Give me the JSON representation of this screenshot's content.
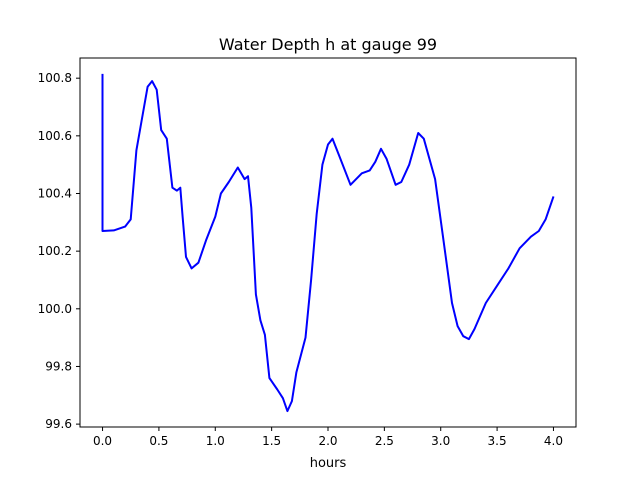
{
  "chart_data": {
    "type": "line",
    "title": "Water Depth h at gauge 99",
    "xlabel": "hours",
    "ylabel": "",
    "xlim": [
      -0.2,
      4.2
    ],
    "ylim": [
      99.59,
      100.87
    ],
    "xticks": [
      0.0,
      0.5,
      1.0,
      1.5,
      2.0,
      2.5,
      3.0,
      3.5,
      4.0
    ],
    "xtick_labels": [
      "0.0",
      "0.5",
      "1.0",
      "1.5",
      "2.0",
      "2.5",
      "3.0",
      "3.5",
      "4.0"
    ],
    "yticks": [
      99.6,
      99.8,
      100.0,
      100.2,
      100.4,
      100.6,
      100.8
    ],
    "ytick_labels": [
      "99.6",
      "99.8",
      "100.0",
      "100.2",
      "100.4",
      "100.6",
      "100.8"
    ],
    "grid": false,
    "series": [
      {
        "name": "h",
        "color": "#0000ff",
        "x": [
          0,
          0,
          0.1,
          0.2,
          0.25,
          0.3,
          0.35,
          0.4,
          0.44,
          0.48,
          0.52,
          0.57,
          0.62,
          0.66,
          0.69,
          0.71,
          0.74,
          0.79,
          0.85,
          0.92,
          1.0,
          1.05,
          1.12,
          1.2,
          1.26,
          1.29,
          1.32,
          1.36,
          1.4,
          1.44,
          1.48,
          1.55,
          1.6,
          1.64,
          1.68,
          1.72,
          1.8,
          1.85,
          1.9,
          1.95,
          2.0,
          2.04,
          2.1,
          2.2,
          2.3,
          2.37,
          2.42,
          2.47,
          2.52,
          2.6,
          2.65,
          2.72,
          2.8,
          2.85,
          2.95,
          3.02,
          3.1,
          3.15,
          3.2,
          3.25,
          3.3,
          3.4,
          3.5,
          3.6,
          3.7,
          3.8,
          3.87,
          3.93,
          4.0
        ],
        "y": [
          100.815,
          100.27,
          100.272,
          100.285,
          100.31,
          100.55,
          100.66,
          100.77,
          100.79,
          100.76,
          100.62,
          100.59,
          100.42,
          100.41,
          100.42,
          100.32,
          100.18,
          100.14,
          100.16,
          100.24,
          100.32,
          100.4,
          100.44,
          100.49,
          100.45,
          100.46,
          100.35,
          100.05,
          99.96,
          99.91,
          99.76,
          99.72,
          99.69,
          99.645,
          99.68,
          99.78,
          99.9,
          100.1,
          100.33,
          100.5,
          100.57,
          100.59,
          100.53,
          100.43,
          100.47,
          100.48,
          100.51,
          100.555,
          100.52,
          100.43,
          100.44,
          100.5,
          100.61,
          100.59,
          100.45,
          100.25,
          100.02,
          99.94,
          99.905,
          99.895,
          99.93,
          100.02,
          100.08,
          100.14,
          100.21,
          100.25,
          100.27,
          100.31,
          100.39
        ]
      }
    ]
  }
}
